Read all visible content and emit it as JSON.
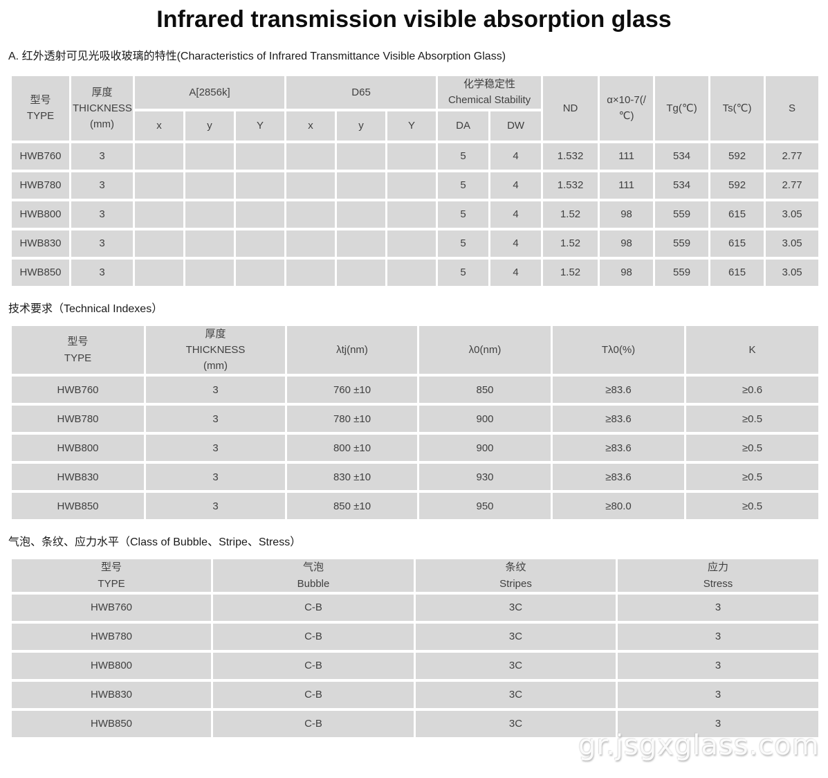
{
  "page": {
    "title": "Infrared transmission visible absorption glass",
    "subtitle": "A. 红外透射可见光吸收玻璃的特性(Characteristics of Infrared Transmittance Visible Absorption Glass)",
    "watermark": "gr.jsgxglass.com"
  },
  "sections": {
    "technical": "技术要求（Technical Indexes）",
    "bubble": "气泡、条纹、应力水平（Class of Bubble、Stripe、Stress）"
  },
  "colors": {
    "cell_background": "#d8d8d8",
    "cell_divider": "#ffffff",
    "table_text": "#404040",
    "heading_text": "#0d0d0d",
    "page_background": "#ffffff"
  },
  "characteristics_table": {
    "header": {
      "type": "型号\nTYPE",
      "thickness": "厚度\nTHICKNESS\n(mm)",
      "a_illuminant": "A[2856k]",
      "d65": "D65",
      "chemical_stability": "化学稳定性\nChemical Stability",
      "nd": "ND",
      "alpha": "α×10-7(/\n℃)",
      "tg": "Tg(℃)",
      "ts": "Ts(℃)",
      "s": "S",
      "sub": [
        "x",
        "y",
        "Y",
        "x",
        "y",
        "Y",
        "DA",
        "DW"
      ]
    },
    "rows": [
      [
        "HWB760",
        "3",
        "",
        "",
        "",
        "",
        "",
        "",
        "5",
        "4",
        "1.532",
        "111",
        "534",
        "592",
        "2.77"
      ],
      [
        "HWB780",
        "3",
        "",
        "",
        "",
        "",
        "",
        "",
        "5",
        "4",
        "1.532",
        "111",
        "534",
        "592",
        "2.77"
      ],
      [
        "HWB800",
        "3",
        "",
        "",
        "",
        "",
        "",
        "",
        "5",
        "4",
        "1.52",
        "98",
        "559",
        "615",
        "3.05"
      ],
      [
        "HWB830",
        "3",
        "",
        "",
        "",
        "",
        "",
        "",
        "5",
        "4",
        "1.52",
        "98",
        "559",
        "615",
        "3.05"
      ],
      [
        "HWB850",
        "3",
        "",
        "",
        "",
        "",
        "",
        "",
        "5",
        "4",
        "1.52",
        "98",
        "559",
        "615",
        "3.05"
      ]
    ]
  },
  "technical_table": {
    "header": [
      "型号\nTYPE",
      "厚度\nTHICKNESS\n(mm)",
      "λtj(nm)",
      "λ0(nm)",
      "Tλ0(%)",
      "K"
    ],
    "rows": [
      [
        "HWB760",
        "3",
        "760 ±10",
        "850",
        "≥83.6",
        "≥0.6"
      ],
      [
        "HWB780",
        "3",
        "780 ±10",
        "900",
        "≥83.6",
        "≥0.5"
      ],
      [
        "HWB800",
        "3",
        "800 ±10",
        "900",
        "≥83.6",
        "≥0.5"
      ],
      [
        "HWB830",
        "3",
        "830 ±10",
        "930",
        "≥83.6",
        "≥0.5"
      ],
      [
        "HWB850",
        "3",
        "850 ±10",
        "950",
        "≥80.0",
        "≥0.5"
      ]
    ]
  },
  "bubble_table": {
    "header": [
      "型号\nTYPE",
      "气泡\nBubble",
      "条纹\nStripes",
      "应力\nStress"
    ],
    "rows": [
      [
        "HWB760",
        "C-B",
        "3C",
        "3"
      ],
      [
        "HWB780",
        "C-B",
        "3C",
        "3"
      ],
      [
        "HWB800",
        "C-B",
        "3C",
        "3"
      ],
      [
        "HWB830",
        "C-B",
        "3C",
        "3"
      ],
      [
        "HWB850",
        "C-B",
        "3C",
        "3"
      ]
    ]
  }
}
